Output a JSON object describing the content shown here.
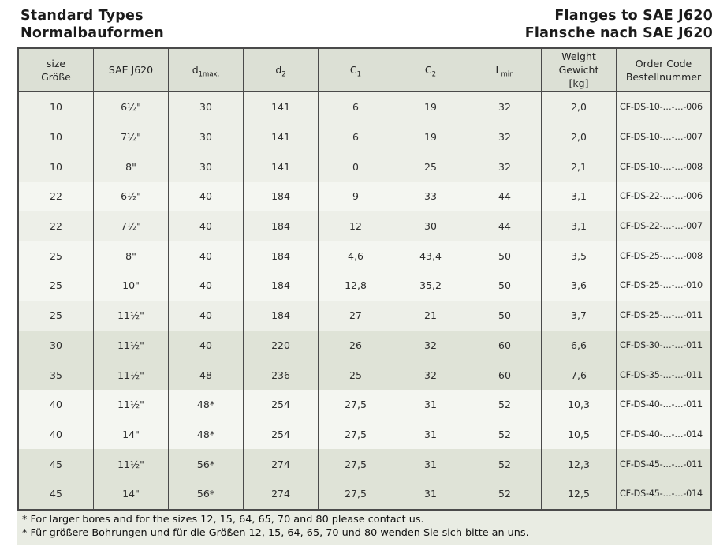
{
  "header": {
    "title_en": "Standard Types",
    "title_de": "Normalbauformen",
    "right_title_en": "Flanges to SAE J620",
    "right_title_de": "Flansche nach SAE J620"
  },
  "table": {
    "headers": {
      "size": {
        "line1": "size",
        "line2": "Größe"
      },
      "sae": {
        "line1": "SAE J620"
      },
      "d1max": {
        "base": "d",
        "sub": "1max."
      },
      "d2": {
        "base": "d",
        "sub": "2"
      },
      "c1": {
        "base": "C",
        "sub": "1"
      },
      "c2": {
        "base": "C",
        "sub": "2"
      },
      "lmin": {
        "base": "L",
        "sub": "min"
      },
      "weight": {
        "line1": "Weight",
        "line2": "Gewicht",
        "line3": "[kg]"
      },
      "order": {
        "line1": "Order Code",
        "line2": "Bestellnummer"
      }
    },
    "rows": [
      {
        "size": "10",
        "sae": "6½\"",
        "d1max": "30",
        "d2": "141",
        "c1": "6",
        "c2": "19",
        "lmin": "32",
        "weight": "2,0",
        "order": "CF-DS-10-…-…-006",
        "tone": "a"
      },
      {
        "size": "10",
        "sae": "7½\"",
        "d1max": "30",
        "d2": "141",
        "c1": "6",
        "c2": "19",
        "lmin": "32",
        "weight": "2,0",
        "order": "CF-DS-10-…-…-007",
        "tone": "a"
      },
      {
        "size": "10",
        "sae": "8\"",
        "d1max": "30",
        "d2": "141",
        "c1": "0",
        "c2": "25",
        "lmin": "32",
        "weight": "2,1",
        "order": "CF-DS-10-…-…-008",
        "tone": "a"
      },
      {
        "size": "22",
        "sae": "6½\"",
        "d1max": "40",
        "d2": "184",
        "c1": "9",
        "c2": "33",
        "lmin": "44",
        "weight": "3,1",
        "order": "CF-DS-22-…-…-006",
        "tone": "b"
      },
      {
        "size": "22",
        "sae": "7½\"",
        "d1max": "40",
        "d2": "184",
        "c1": "12",
        "c2": "30",
        "lmin": "44",
        "weight": "3,1",
        "order": "CF-DS-22-…-…-007",
        "tone": "a"
      },
      {
        "size": "25",
        "sae": "8\"",
        "d1max": "40",
        "d2": "184",
        "c1": "4,6",
        "c2": "43,4",
        "lmin": "50",
        "weight": "3,5",
        "order": "CF-DS-25-…-…-008",
        "tone": "b"
      },
      {
        "size": "25",
        "sae": "10\"",
        "d1max": "40",
        "d2": "184",
        "c1": "12,8",
        "c2": "35,2",
        "lmin": "50",
        "weight": "3,6",
        "order": "CF-DS-25-…-…-010",
        "tone": "b"
      },
      {
        "size": "25",
        "sae": "11½\"",
        "d1max": "40",
        "d2": "184",
        "c1": "27",
        "c2": "21",
        "lmin": "50",
        "weight": "3,7",
        "order": "CF-DS-25-…-…-011",
        "tone": "a"
      },
      {
        "size": "30",
        "sae": "11½\"",
        "d1max": "40",
        "d2": "220",
        "c1": "26",
        "c2": "32",
        "lmin": "60",
        "weight": "6,6",
        "order": "CF-DS-30-…-…-011",
        "tone": "d"
      },
      {
        "size": "35",
        "sae": "11½\"",
        "d1max": "48",
        "d2": "236",
        "c1": "25",
        "c2": "32",
        "lmin": "60",
        "weight": "7,6",
        "order": "CF-DS-35-…-…-011",
        "tone": "d"
      },
      {
        "size": "40",
        "sae": "11½\"",
        "d1max": "48*",
        "d2": "254",
        "c1": "27,5",
        "c2": "31",
        "lmin": "52",
        "weight": "10,3",
        "order": "CF-DS-40-…-…-011",
        "tone": "b"
      },
      {
        "size": "40",
        "sae": "14\"",
        "d1max": "48*",
        "d2": "254",
        "c1": "27,5",
        "c2": "31",
        "lmin": "52",
        "weight": "10,5",
        "order": "CF-DS-40-…-…-014",
        "tone": "b"
      },
      {
        "size": "45",
        "sae": "11½\"",
        "d1max": "56*",
        "d2": "274",
        "c1": "27,5",
        "c2": "31",
        "lmin": "52",
        "weight": "12,3",
        "order": "CF-DS-45-…-…-011",
        "tone": "d"
      },
      {
        "size": "45",
        "sae": "14\"",
        "d1max": "56*",
        "d2": "274",
        "c1": "27,5",
        "c2": "31",
        "lmin": "52",
        "weight": "12,5",
        "order": "CF-DS-45-…-…-014",
        "tone": "d"
      }
    ]
  },
  "footnotes": [
    "* For larger bores and for the sizes 12, 15, 64, 65, 70 and 80 please contact us.",
    "* Für größere Bohrungen und für die Größen 12, 15, 64, 65, 70 und 80 wenden Sie sich bitte an uns."
  ],
  "colors": {
    "row_light": "#edefe8",
    "row_lighter": "#f4f6f1",
    "row_dark": "#dfe3d7",
    "header_bg": "#dce0d5",
    "footnote_bg": "#e9ece3",
    "border": "#4a4a4a"
  }
}
